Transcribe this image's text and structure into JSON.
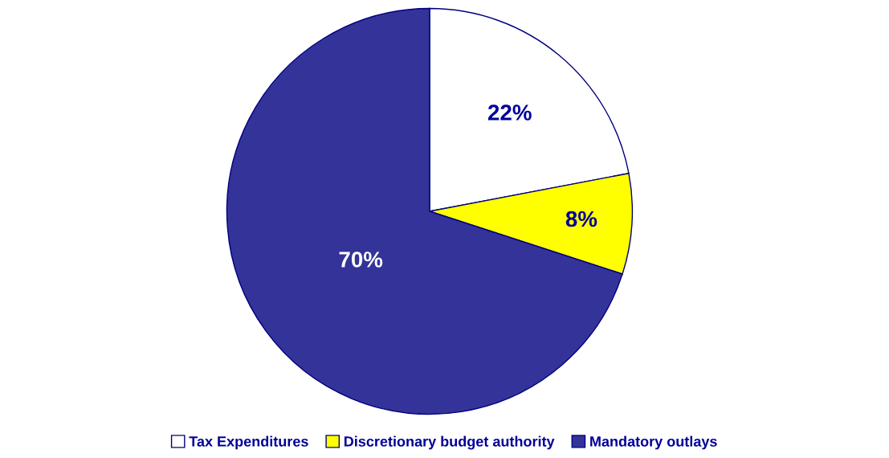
{
  "chart_data": {
    "type": "pie",
    "categories": [
      "Tax Expenditures",
      "Discretionary budget authority",
      "Mandatory outlays"
    ],
    "values": [
      22,
      8,
      70
    ],
    "colors": [
      "#ffffff",
      "#ffff00",
      "#333399"
    ],
    "value_labels": [
      "22%",
      "8%",
      "70%"
    ],
    "legend": "bottom"
  }
}
